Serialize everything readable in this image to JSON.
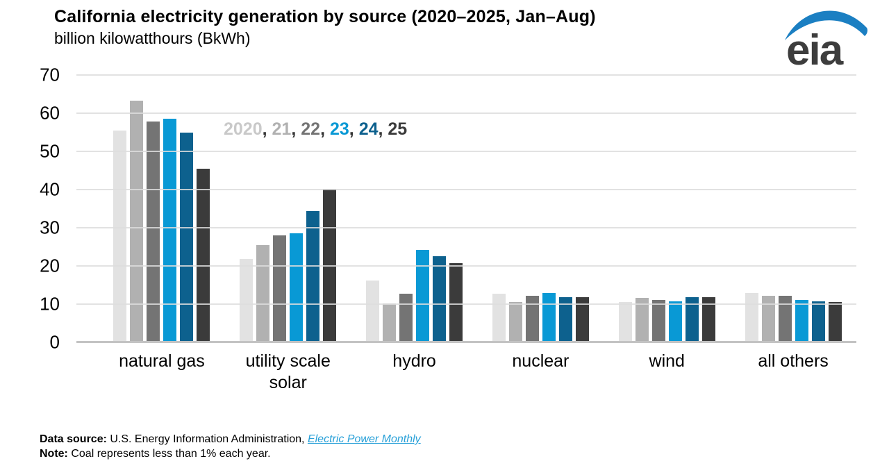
{
  "header": {
    "title": "California electricity generation by source (2020–2025, Jan–Aug)",
    "subtitle": "billion kilowatthours (BkWh)"
  },
  "logo": {
    "text": "eia",
    "swoosh_color": "#1b7fc2",
    "text_color": "#3d3d3d"
  },
  "legend": {
    "separator": ", ",
    "separator_color": "#333333",
    "items": [
      {
        "label": "2020",
        "color": "#c9c9c9"
      },
      {
        "label": "21",
        "color": "#b1b1b1"
      },
      {
        "label": "22",
        "color": "#747474"
      },
      {
        "label": "23",
        "color": "#0999d5"
      },
      {
        "label": "24",
        "color": "#0d618e"
      },
      {
        "label": "25",
        "color": "#3b3b3b"
      }
    ]
  },
  "chart_data": {
    "type": "bar",
    "title": "California electricity generation by source (2020–2025, Jan–Aug)",
    "ylabel": "billion kilowatthours (BkWh)",
    "xlabel": "",
    "ylim": [
      0,
      70
    ],
    "yticks": [
      0,
      10,
      20,
      30,
      40,
      50,
      60,
      70
    ],
    "grid": true,
    "legend_position": "inside-top-left",
    "categories": [
      "natural gas",
      "utility scale solar",
      "hydro",
      "nuclear",
      "wind",
      "all others"
    ],
    "series": [
      {
        "name": "2020",
        "color": "#e2e2e2",
        "values": [
          55.4,
          21.9,
          16.2,
          12.7,
          10.5,
          13.0
        ]
      },
      {
        "name": "21",
        "color": "#b1b1b1",
        "values": [
          63.3,
          25.4,
          10.2,
          10.5,
          11.6,
          12.2
        ]
      },
      {
        "name": "22",
        "color": "#747474",
        "values": [
          57.8,
          28.0,
          12.7,
          12.2,
          11.1,
          12.2
        ]
      },
      {
        "name": "23",
        "color": "#0999d5",
        "values": [
          58.6,
          28.5,
          24.2,
          12.9,
          10.8,
          11.1
        ]
      },
      {
        "name": "24",
        "color": "#0d618e",
        "values": [
          55.0,
          34.4,
          22.6,
          11.9,
          11.8,
          10.7
        ]
      },
      {
        "name": "25",
        "color": "#3b3b3b",
        "values": [
          45.4,
          40.2,
          20.7,
          11.8,
          11.9,
          10.5
        ]
      }
    ]
  },
  "footer": {
    "source_label": "Data source:",
    "source_text": " U.S. Energy Information Administration, ",
    "source_link": "Electric Power Monthly",
    "note_label": "Note:",
    "note_text": " Coal represents less than 1% each year."
  }
}
